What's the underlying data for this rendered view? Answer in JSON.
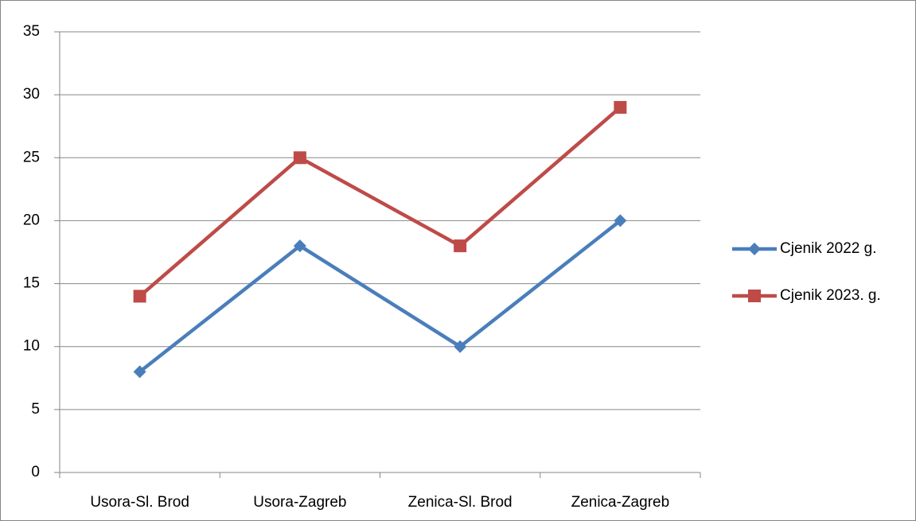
{
  "chart_data": {
    "type": "line",
    "categories": [
      "Usora-Sl. Brod",
      "Usora-Zagreb",
      "Zenica-Sl. Brod",
      "Zenica-Zagreb"
    ],
    "series": [
      {
        "name": "Cjenik 2022 g.",
        "color": "#4a7ebb",
        "marker": "diamond",
        "values": [
          8,
          18,
          10,
          20
        ]
      },
      {
        "name": "Cjenik 2023. g.",
        "color": "#be4b48",
        "marker": "square",
        "values": [
          14,
          25,
          18,
          29
        ]
      }
    ],
    "ylim": [
      0,
      35
    ],
    "yticks": [
      0,
      5,
      10,
      15,
      20,
      25,
      30,
      35
    ],
    "grid": true,
    "legend": "right"
  }
}
